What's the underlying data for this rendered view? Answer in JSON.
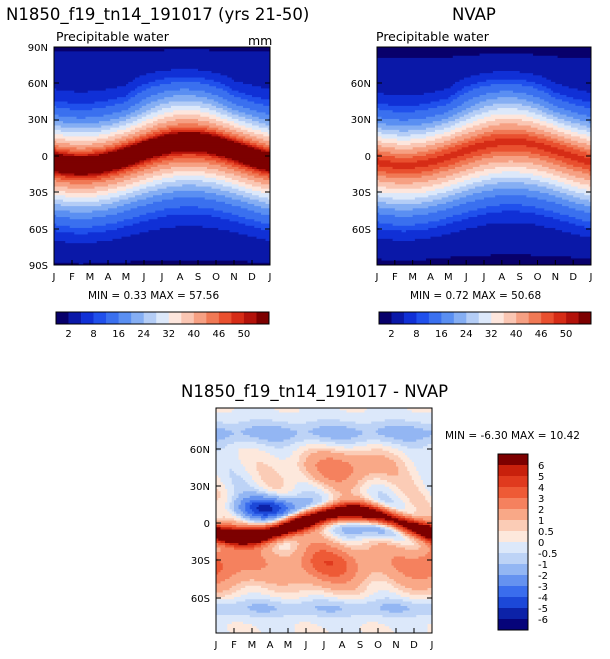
{
  "chart_data": [
    {
      "type": "heatmap",
      "title": "N1850_f19_tn14_191017 (yrs 21-50)",
      "subtitle": "Precipitable water",
      "units": "mm",
      "x_ticks": [
        "J",
        "F",
        "M",
        "A",
        "M",
        "J",
        "J",
        "A",
        "S",
        "O",
        "N",
        "D",
        "J"
      ],
      "y_ticks": [
        "90N",
        "60N",
        "30N",
        "0",
        "30S",
        "60S",
        "90S"
      ],
      "stats": "MIN =    0.33  MAX =   57.56",
      "colorbar": {
        "labels": [
          "2",
          "8",
          "16",
          "24",
          "32",
          "40",
          "46",
          "50"
        ],
        "colors": [
          "#08006b",
          "#0a18a8",
          "#1030d6",
          "#2050ec",
          "#3a70ef",
          "#5a8ff2",
          "#85aef3",
          "#b4cdf6",
          "#dce8fa",
          "#fde6dd",
          "#fac6b3",
          "#f6a083",
          "#f07955",
          "#e9502f",
          "#d62c16",
          "#b3120a",
          "#7d0000"
        ]
      },
      "field": {
        "type": "precipitable-water",
        "max_mm": 57.56,
        "min_mm": 0.33
      }
    },
    {
      "type": "heatmap",
      "title": "NVAP",
      "subtitle": "Precipitable water",
      "x_ticks": [
        "J",
        "F",
        "M",
        "A",
        "M",
        "J",
        "J",
        "A",
        "S",
        "O",
        "N",
        "D",
        "J"
      ],
      "y_ticks": [
        "60N",
        "30N",
        "0",
        "30S",
        "60S"
      ],
      "stats": "MIN =    0.72  MAX =   50.68",
      "colorbar": {
        "labels": [
          "2",
          "8",
          "16",
          "24",
          "32",
          "40",
          "46",
          "50"
        ],
        "colors": [
          "#08006b",
          "#0a18a8",
          "#1030d6",
          "#2050ec",
          "#3a70ef",
          "#5a8ff2",
          "#85aef3",
          "#b4cdf6",
          "#dce8fa",
          "#fde6dd",
          "#fac6b3",
          "#f6a083",
          "#f07955",
          "#e9502f",
          "#d62c16",
          "#b3120a",
          "#7d0000"
        ]
      },
      "field": {
        "type": "precipitable-water",
        "max_mm": 50.68,
        "min_mm": 0.72
      }
    },
    {
      "type": "heatmap",
      "title": "N1850_f19_tn14_191017 - NVAP",
      "x_ticks": [
        "J",
        "F",
        "M",
        "A",
        "M",
        "J",
        "J",
        "A",
        "S",
        "O",
        "N",
        "D",
        "J"
      ],
      "y_ticks": [
        "60N",
        "30N",
        "0",
        "30S",
        "60S"
      ],
      "stats": "MIN =   -6.30  MAX =   10.42",
      "colorbar": {
        "labels": [
          "6",
          "5",
          "4",
          "3",
          "2",
          "1",
          "0.5",
          "0",
          "-0.5",
          "-1",
          "-2",
          "-3",
          "-4",
          "-5",
          "-6"
        ],
        "colors": [
          "#7d0000",
          "#c8200c",
          "#e03a1e",
          "#ee5a36",
          "#f5815e",
          "#f9a887",
          "#fbccb6",
          "#fde8dc",
          "#dce8fa",
          "#bdd3f6",
          "#93b6f3",
          "#6592f0",
          "#3a6ded",
          "#1c48d8",
          "#0c22a8",
          "#06047a"
        ]
      },
      "field": {
        "type": "difference",
        "max": 10.42,
        "min": -6.3
      }
    }
  ]
}
